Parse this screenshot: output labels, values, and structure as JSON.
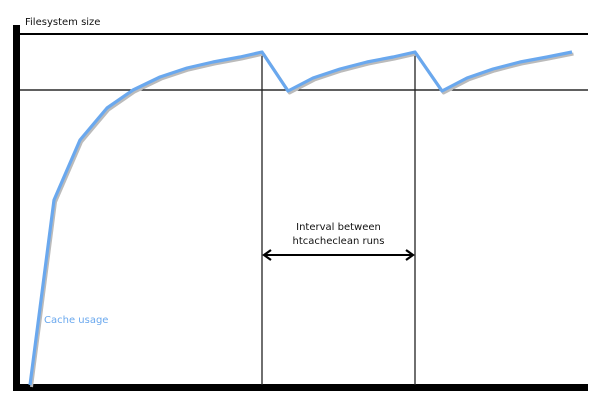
{
  "diagram": {
    "y_axis_label": "Filesystem size",
    "interval_label_line1": "Interval between",
    "interval_label_line2": "htcacheclean runs",
    "curve_label": "Cache usage",
    "colors": {
      "curve": "#6aa8ee",
      "axes": "#000000",
      "curve_shadow": "#bbbbbb"
    }
  }
}
